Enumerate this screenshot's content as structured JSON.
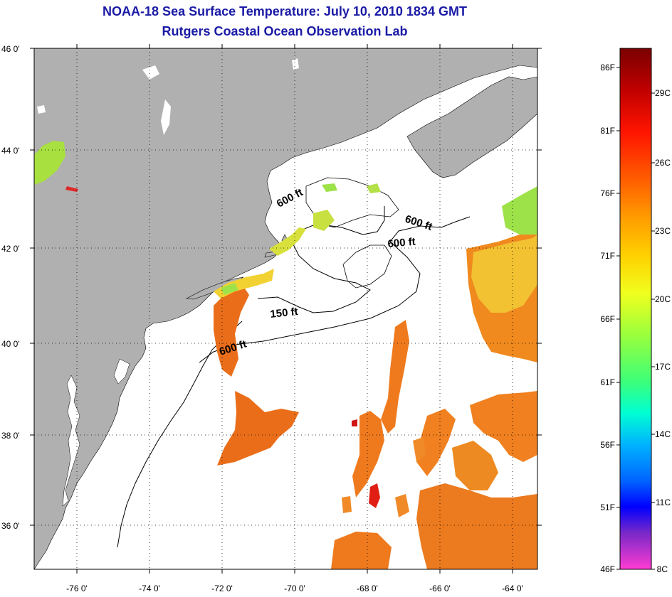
{
  "title": "NOAA-18 Sea Surface Temperature:  July 10, 2010 1834 GMT",
  "subtitle": "Rutgers Coastal Ocean Observation Lab",
  "map": {
    "lon_range": [
      -77,
      -63
    ],
    "lat_range": [
      35.2,
      46
    ],
    "lat_ticks": [
      "46 0'",
      "44 0'",
      "42 0'",
      "40 0'",
      "38 0'",
      "36 0'"
    ],
    "lon_ticks": [
      "-76 0'",
      "-74 0'",
      "-72 0'",
      "-70 0'",
      "-68 0'",
      "-66 0'",
      "-64 0'"
    ],
    "contour_labels": [
      {
        "text": "600 ft",
        "lon": -70.5,
        "lat": 42.7
      },
      {
        "text": "600 ft",
        "lon": -66.2,
        "lat": 42.4
      },
      {
        "text": "600 ft",
        "lon": -65.7,
        "lat": 42.0
      },
      {
        "text": "150 ft",
        "lon": -69.6,
        "lat": 40.6
      },
      {
        "text": "600 ft",
        "lon": -71.6,
        "lat": 39.8
      }
    ],
    "land_color": "#b0b0b0",
    "ocean_color": "#ffffff"
  },
  "colorbar": {
    "f_labels": [
      "86F",
      "81F",
      "76F",
      "71F",
      "66F",
      "61F",
      "56F",
      "51F",
      "46F"
    ],
    "c_labels": [
      "29C",
      "26C",
      "23C",
      "20C",
      "17C",
      "14C",
      "11C",
      "8C"
    ],
    "colors": [
      "#7a0000",
      "#c80000",
      "#ff1e00",
      "#ff6a00",
      "#ffa500",
      "#ffd700",
      "#f0ff1e",
      "#a0ff3c",
      "#3cff7a",
      "#00ffd0",
      "#00c8ff",
      "#0078ff",
      "#0014ff",
      "#5a28d2",
      "#a028c8",
      "#ff3cc8"
    ]
  }
}
